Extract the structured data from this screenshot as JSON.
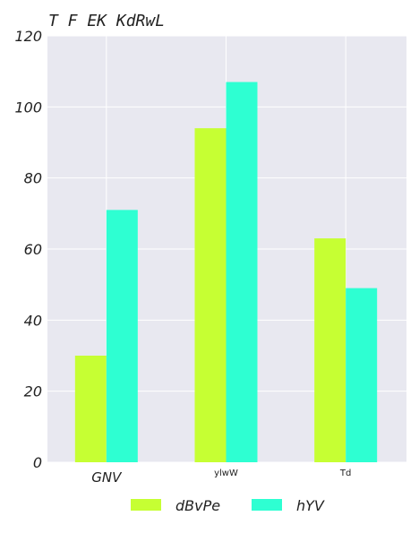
{
  "chart_data": {
    "type": "bar",
    "title": "T  F  EK  KdRwL",
    "xlabel": "",
    "ylabel": "",
    "categories": [
      "GNV",
      "ylwW",
      "Td"
    ],
    "series": [
      {
        "name": "dBvPe",
        "values": [
          30,
          94,
          63
        ],
        "color": "#c6ff33"
      },
      {
        "name": "hYV",
        "values": [
          71,
          107,
          49
        ],
        "color": "#2effd2"
      }
    ],
    "ylim": [
      0,
      120
    ],
    "yticks": [
      "0",
      "20",
      "40",
      "60",
      "80",
      "100",
      "120"
    ],
    "grid": true,
    "legend": "bottom-center",
    "plot_background": "#e8e8f0"
  }
}
